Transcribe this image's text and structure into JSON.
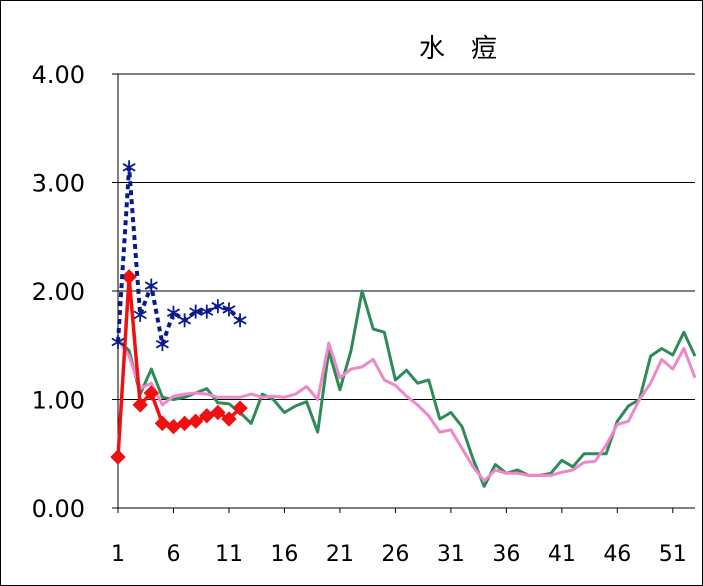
{
  "chart_data": {
    "type": "line",
    "title": "水　痘",
    "xlabel": "",
    "ylabel": "",
    "xlim": [
      1,
      53
    ],
    "ylim": [
      0,
      4
    ],
    "grid": "horizontal",
    "legend": "none",
    "y_ticks": [
      "0.00",
      "1.00",
      "2.00",
      "3.00",
      "4.00"
    ],
    "x_ticks": [
      "1",
      "6",
      "11",
      "16",
      "21",
      "26",
      "31",
      "36",
      "41",
      "46",
      "51"
    ],
    "x_tick_values": [
      1,
      6,
      11,
      16,
      21,
      26,
      31,
      36,
      41,
      46,
      51
    ],
    "series": [
      {
        "color": "#2e8b57",
        "style": "line",
        "x": [
          1,
          2,
          3,
          4,
          5,
          6,
          7,
          8,
          9,
          10,
          11,
          12,
          13,
          14,
          15,
          16,
          17,
          18,
          19,
          20,
          21,
          22,
          23,
          24,
          25,
          26,
          27,
          28,
          29,
          30,
          31,
          32,
          33,
          34,
          35,
          36,
          37,
          38,
          39,
          40,
          41,
          42,
          43,
          44,
          45,
          46,
          47,
          48,
          49,
          50,
          51,
          52,
          53
        ],
        "values": [
          1.55,
          1.45,
          1.05,
          1.28,
          1.02,
          1.0,
          1.02,
          1.06,
          1.1,
          0.97,
          0.96,
          0.88,
          0.78,
          1.05,
          1.0,
          0.88,
          0.94,
          0.98,
          0.7,
          1.45,
          1.09,
          1.45,
          2.0,
          1.65,
          1.62,
          1.18,
          1.27,
          1.15,
          1.18,
          0.82,
          0.88,
          0.75,
          0.45,
          0.2,
          0.4,
          0.32,
          0.35,
          0.3,
          0.3,
          0.32,
          0.44,
          0.38,
          0.5,
          0.5,
          0.5,
          0.8,
          0.94,
          1.0,
          1.4,
          1.47,
          1.41,
          1.62,
          1.4
        ]
      },
      {
        "color": "#ee88c8",
        "style": "line",
        "x": [
          1,
          2,
          3,
          4,
          5,
          6,
          7,
          8,
          9,
          10,
          11,
          12,
          13,
          14,
          15,
          16,
          17,
          18,
          19,
          20,
          21,
          22,
          23,
          24,
          25,
          26,
          27,
          28,
          29,
          30,
          31,
          32,
          33,
          34,
          35,
          36,
          37,
          38,
          39,
          40,
          41,
          42,
          43,
          44,
          45,
          46,
          47,
          48,
          49,
          50,
          51,
          52,
          53
        ],
        "values": [
          1.55,
          1.4,
          1.1,
          1.15,
          0.95,
          1.03,
          1.05,
          1.06,
          1.05,
          1.02,
          1.02,
          1.02,
          1.05,
          1.02,
          1.03,
          1.02,
          1.05,
          1.12,
          1.0,
          1.52,
          1.2,
          1.28,
          1.3,
          1.37,
          1.18,
          1.13,
          1.03,
          0.95,
          0.85,
          0.7,
          0.72,
          0.55,
          0.38,
          0.25,
          0.35,
          0.32,
          0.32,
          0.3,
          0.3,
          0.3,
          0.33,
          0.35,
          0.42,
          0.43,
          0.58,
          0.77,
          0.8,
          1.0,
          1.15,
          1.37,
          1.28,
          1.47,
          1.2
        ]
      },
      {
        "color": "#ee1111",
        "style": "line-diamond",
        "x": [
          1,
          2,
          3,
          4,
          5,
          6,
          7,
          8,
          9,
          10,
          11,
          12
        ],
        "values": [
          0.47,
          2.13,
          0.95,
          1.06,
          0.78,
          0.75,
          0.78,
          0.8,
          0.85,
          0.88,
          0.82,
          0.92
        ]
      },
      {
        "color": "#0a1a8c",
        "style": "dotted-asterisk",
        "x": [
          1,
          2,
          3,
          4,
          5,
          6,
          7,
          8,
          9,
          10,
          11,
          12
        ],
        "values": [
          1.53,
          3.14,
          1.78,
          2.05,
          1.51,
          1.8,
          1.73,
          1.81,
          1.81,
          1.86,
          1.83,
          1.73
        ]
      }
    ]
  }
}
